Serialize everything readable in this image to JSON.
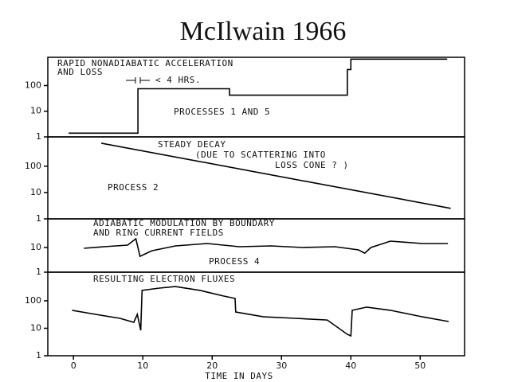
{
  "title": "McIlwain 1966",
  "chart_data": [
    {
      "type": "line",
      "yscale": "log",
      "color": "#000000",
      "annotations": [
        "RAPID NONADIABATIC ACCELERATION",
        "AND LOSS",
        "< 4 HRS.",
        "PROCESSES 1 AND 5"
      ],
      "xlim": [
        -3.7,
        56.4
      ],
      "ylim": [
        1,
        1260
      ],
      "yticks": [
        1,
        10,
        100
      ],
      "x": [
        -0.7,
        9.3,
        9.3,
        22.5,
        22.5,
        39.5,
        39.5,
        40,
        40,
        53.9
      ],
      "series": [
        {
          "values": [
            1.4,
            1.4,
            75,
            75,
            42,
            42,
            420,
            420,
            1070,
            1070
          ]
        }
      ]
    },
    {
      "type": "line",
      "yscale": "log",
      "color": "#000000",
      "annotations": [
        "STEADY DECAY",
        "(DUE TO SCATTERING INTO",
        "LOSS CONE ? )",
        "PROCESS 2"
      ],
      "xlim": [
        -3.7,
        56.4
      ],
      "ylim": [
        1,
        1300
      ],
      "yticks": [
        1,
        10,
        100
      ],
      "x": [
        4,
        54.4
      ],
      "series": [
        {
          "values": [
            750,
            2.5
          ]
        }
      ]
    },
    {
      "type": "line",
      "yscale": "log",
      "color": "#000000",
      "annotations": [
        "ADIABATIC MODULATION BY BOUNDARY",
        "AND RING CURRENT FIELDS",
        "PROCESS 4"
      ],
      "xlim": [
        -3.7,
        56.4
      ],
      "ylim": [
        1,
        145
      ],
      "yticks": [
        1,
        10
      ],
      "x": [
        1.5,
        4.4,
        7.8,
        9,
        9.6,
        11.3,
        14.7,
        19.3,
        23.9,
        28.5,
        33.1,
        37.7,
        41.1,
        42,
        42.9,
        45.7,
        50.3,
        54
      ],
      "series": [
        {
          "values": [
            9.3,
            10.8,
            12.5,
            22.7,
            4.4,
            7.4,
            11.6,
            14.5,
            10.8,
            11.6,
            10,
            10.8,
            8,
            5.9,
            10,
            18.1,
            14.5,
            14.5
          ]
        }
      ]
    },
    {
      "type": "line",
      "yscale": "log",
      "color": "#000000",
      "annotations": [
        "RESULTING ELECTRON FLUXES"
      ],
      "xlabel": "TIME IN DAYS",
      "xlim": [
        -3.7,
        56.4
      ],
      "ylim": [
        1,
        1100
      ],
      "yticks": [
        1,
        10,
        100
      ],
      "xticks": [
        0,
        10,
        20,
        30,
        40,
        50
      ],
      "x": [
        -0.2,
        3.2,
        6.7,
        8.7,
        9.2,
        9.7,
        9.9,
        12.4,
        14.7,
        18.2,
        21.6,
        23.3,
        23.4,
        27.4,
        32,
        36.6,
        39.5,
        40,
        40.2,
        42.3,
        45.7,
        50.3,
        54.1
      ],
      "series": [
        {
          "values": [
            45,
            32,
            23,
            16.5,
            32,
            8.4,
            240,
            290,
            330,
            240,
            150,
            122,
            39,
            26,
            23,
            20,
            6,
            5.3,
            45,
            59,
            45,
            26,
            17.6
          ]
        }
      ]
    }
  ]
}
